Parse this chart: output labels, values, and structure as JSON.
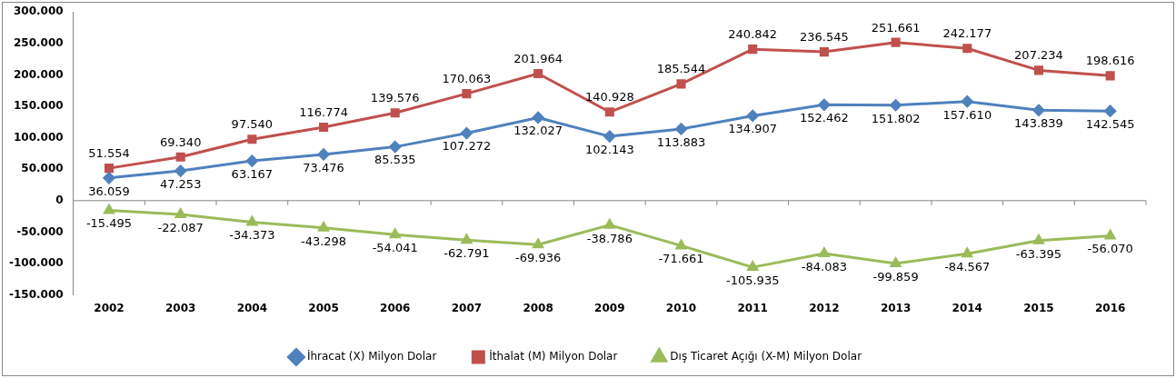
{
  "chart_data": {
    "type": "line",
    "categories": [
      "2002",
      "2003",
      "2004",
      "2005",
      "2006",
      "2007",
      "2008",
      "2009",
      "2010",
      "2011",
      "2012",
      "2013",
      "2014",
      "2015",
      "2016"
    ],
    "series": [
      {
        "name": "İhracat (X) Milyon Dolar",
        "color": "#4f81bd",
        "marker": "diamond",
        "values": [
          36059,
          47253,
          63167,
          73476,
          85535,
          107272,
          132027,
          102143,
          113883,
          134907,
          152462,
          151802,
          157610,
          143839,
          142545
        ],
        "value_labels": [
          "36.059",
          "47.253",
          "63.167",
          "73.476",
          "85.535",
          "107.272",
          "132.027",
          "102.143",
          "113.883",
          "134.907",
          "152.462",
          "151.802",
          "157.610",
          "143.839",
          "142.545"
        ]
      },
      {
        "name": "İthalat (M) Milyon Dolar",
        "color": "#c0504d",
        "marker": "square",
        "values": [
          51554,
          69340,
          97540,
          116774,
          139576,
          170063,
          201964,
          140928,
          185544,
          240842,
          236545,
          251661,
          242177,
          207234,
          198616
        ],
        "value_labels": [
          "51.554",
          "69.340",
          "97.540",
          "116.774",
          "139.576",
          "170.063",
          "201.964",
          "140.928",
          "185.544",
          "240.842",
          "236.545",
          "251.661",
          "242.177",
          "207.234",
          "198.616"
        ]
      },
      {
        "name": "Dış Ticaret Açığı (X-M) Milyon Dolar",
        "color": "#9bbb59",
        "marker": "triangle",
        "values": [
          -15495,
          -22087,
          -34373,
          -43298,
          -54041,
          -62791,
          -69936,
          -38786,
          -71661,
          -105935,
          -84083,
          -99859,
          -84567,
          -63395,
          -56070
        ],
        "value_labels": [
          "-15.495",
          "-22.087",
          "-34.373",
          "-43.298",
          "-54.041",
          "-62.791",
          "-69.936",
          "-38.786",
          "-71.661",
          "-105.935",
          "-84.083",
          "-99.859",
          "-84.567",
          "-63.395",
          "-56.070"
        ]
      }
    ],
    "ylim": [
      -150000,
      300000
    ],
    "yticks": [
      {
        "value": -150000,
        "label": "-150.000"
      },
      {
        "value": -100000,
        "label": "-100.000"
      },
      {
        "value": -50000,
        "label": "-50.000"
      },
      0,
      {
        "value": 50000,
        "label": "50.000"
      },
      {
        "value": 100000,
        "label": "100.000"
      },
      {
        "value": 150000,
        "label": "150.000"
      },
      {
        "value": 200000,
        "label": "200.000"
      },
      {
        "value": 250000,
        "label": "250.000"
      },
      {
        "value": 300000,
        "label": "300.000"
      }
    ],
    "ref_lines": [
      {
        "axis": "y",
        "value": 0,
        "color": "#888888"
      }
    ],
    "grid": false,
    "legend": "bottom",
    "line_style": "solid"
  }
}
